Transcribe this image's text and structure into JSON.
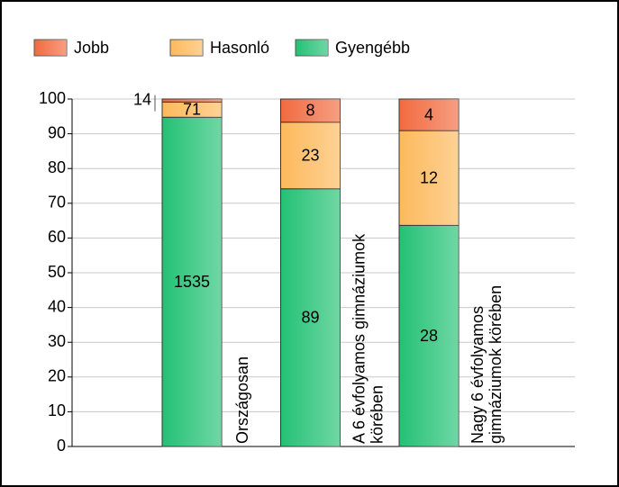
{
  "chart_data": {
    "type": "bar",
    "stacking": "percent",
    "categories": [
      "Országosan",
      "A 6 évfolyamos gimnáziumok körében",
      "Nagy 6 évfolyamos gimnáziumok körében"
    ],
    "series": [
      {
        "name": "Gyengébb",
        "color": "#23c174",
        "values": [
          1535,
          89,
          28
        ]
      },
      {
        "name": "Hasonló",
        "color": "#fdb95c",
        "values": [
          71,
          23,
          12
        ]
      },
      {
        "name": "Jobb",
        "color": "#f26a3f",
        "values": [
          14,
          8,
          4
        ]
      }
    ],
    "ylim": [
      0,
      100
    ],
    "yticks": [
      0,
      10,
      20,
      30,
      40,
      50,
      60,
      70,
      80,
      90,
      100
    ],
    "grid": true
  }
}
